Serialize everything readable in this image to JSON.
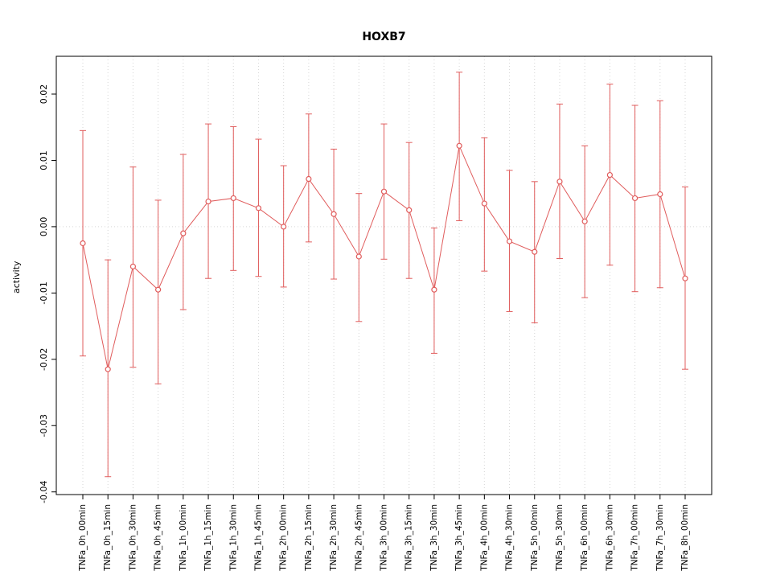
{
  "figure": {
    "background": "#ffffff"
  },
  "chart_data": {
    "type": "line",
    "title": "HOXB7",
    "xlabel": "",
    "ylabel": "activity",
    "legend": "none",
    "grid": "dotted vertical gridline at every category; dotted horizontal line at y=0",
    "categories": [
      "TNFa_0h_00min",
      "TNFa_0h_15min",
      "TNFa_0h_30min",
      "TNFa_0h_45min",
      "TNFa_1h_00min",
      "TNFa_1h_15min",
      "TNFa_1h_30min",
      "TNFa_1h_45min",
      "TNFa_2h_00min",
      "TNFa_2h_15min",
      "TNFa_2h_30min",
      "TNFa_2h_45min",
      "TNFa_3h_00min",
      "TNFa_3h_15min",
      "TNFa_3h_30min",
      "TNFa_3h_45min",
      "TNFa_4h_00min",
      "TNFa_4h_30min",
      "TNFa_5h_00min",
      "TNFa_5h_30min",
      "TNFa_6h_00min",
      "TNFa_6h_30min",
      "TNFa_7h_00min",
      "TNFa_7h_30min",
      "TNFa_8h_00min"
    ],
    "series": [
      {
        "name": "activity",
        "values": [
          -0.0025,
          -0.0215,
          -0.006,
          -0.0095,
          -0.001,
          0.0038,
          0.0043,
          0.0028,
          0.0,
          0.0072,
          0.0019,
          -0.0045,
          0.0053,
          0.0025,
          -0.0095,
          0.0122,
          0.0035,
          -0.0022,
          -0.0038,
          0.0068,
          0.0008,
          0.0078,
          0.0043,
          0.0049,
          -0.0078
        ],
        "upper": [
          0.0145,
          -0.005,
          0.009,
          0.004,
          0.0109,
          0.0155,
          0.0151,
          0.0132,
          0.0092,
          0.017,
          0.0117,
          0.005,
          0.0155,
          0.0127,
          -0.0002,
          0.0233,
          0.0134,
          0.0085,
          0.0068,
          0.0185,
          0.0122,
          0.0215,
          0.0183,
          0.019,
          0.006
        ],
        "lower": [
          -0.0195,
          -0.0377,
          -0.0212,
          -0.0237,
          -0.0125,
          -0.0078,
          -0.0066,
          -0.0075,
          -0.0091,
          -0.0023,
          -0.0079,
          -0.0143,
          -0.0049,
          -0.0078,
          -0.0191,
          0.0009,
          -0.0067,
          -0.0128,
          -0.0145,
          -0.0048,
          -0.0107,
          -0.0058,
          -0.0098,
          -0.0092,
          -0.0215
        ]
      }
    ],
    "ylim": [
      -0.0404,
      0.0257
    ],
    "yticks": [
      -0.04,
      -0.03,
      -0.02,
      -0.01,
      0,
      0.01,
      0.02
    ],
    "ytick_labels": [
      "-0.04",
      "-0.03",
      "-0.02",
      "-0.01",
      "0.00",
      "0.01",
      "0.02"
    ],
    "colors": {
      "series": "#e05c5c",
      "grid": "#d6d6d6",
      "axis": "#000000",
      "point_fill": "#ffffff"
    }
  }
}
